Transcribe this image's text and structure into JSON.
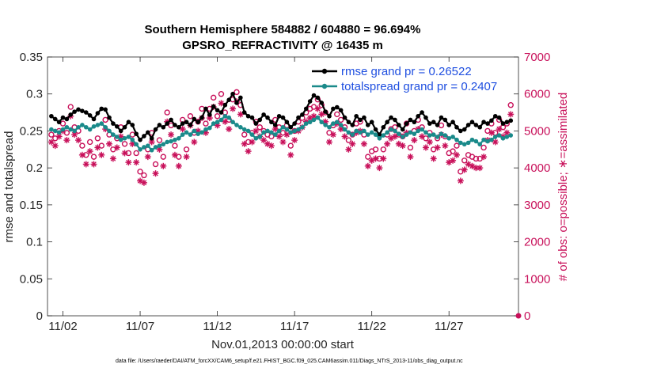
{
  "chart_data": {
    "type": "line",
    "title": "Southern Hemisphere 584882 / 604880 = 96.694%",
    "subtitle": "GPSRO_REFRACTIVITY @ 16435 m",
    "xlabel": "Nov.01,2013 00:00:00 start",
    "ylabel": "rmse and totalspread",
    "y2label": "# of obs: o=possible; ∗=assimilated",
    "footnote": "data file: /Users/raeder/DAI/ATM_forcXX/CAM6_setup/f.e21.FHIST_BGC.f09_025.CAM6assim.011/Diags_NTrS_2013-11/obs_diag_output.nc",
    "xlim": [
      0,
      30.5
    ],
    "ylim": [
      0,
      0.35
    ],
    "y2lim": [
      0,
      7000
    ],
    "x_ticks": [
      {
        "value": 1,
        "label": "11/02"
      },
      {
        "value": 6,
        "label": "11/07"
      },
      {
        "value": 11,
        "label": "11/12"
      },
      {
        "value": 16,
        "label": "11/17"
      },
      {
        "value": 21,
        "label": "11/22"
      },
      {
        "value": 26,
        "label": "11/27"
      }
    ],
    "y_ticks": [
      "0",
      "0.05",
      "0.1",
      "0.15",
      "0.2",
      "0.25",
      "0.3",
      "0.35"
    ],
    "y_tick_values": [
      0,
      0.05,
      0.1,
      0.15,
      0.2,
      0.25,
      0.3,
      0.35
    ],
    "y2_ticks": [
      "0",
      "1000",
      "2000",
      "3000",
      "4000",
      "5000",
      "6000",
      "7000"
    ],
    "y2_tick_values": [
      0,
      1000,
      2000,
      3000,
      4000,
      5000,
      6000,
      7000
    ],
    "legend": [
      {
        "label": "rmse grand pr = 0.26522",
        "color": "#000000"
      },
      {
        "label": "totalspread grand pr = 0.2407",
        "color": "#1a8a8a"
      }
    ],
    "colors": {
      "rmse": "#000000",
      "spread": "#1a8a8a",
      "obs": "#c8105a"
    },
    "x_start": 0.25,
    "x_step": 0.25,
    "series": [
      {
        "name": "rmse",
        "values": [
          0.27,
          0.266,
          0.262,
          0.268,
          0.266,
          0.272,
          0.276,
          0.279,
          0.277,
          0.275,
          0.271,
          0.266,
          0.274,
          0.28,
          0.279,
          0.268,
          0.26,
          0.256,
          0.25,
          0.255,
          0.262,
          0.258,
          0.246,
          0.238,
          0.243,
          0.248,
          0.24,
          0.252,
          0.258,
          0.255,
          0.26,
          0.265,
          0.258,
          0.255,
          0.26,
          0.262,
          0.258,
          0.266,
          0.262,
          0.268,
          0.28,
          0.272,
          0.283,
          0.278,
          0.275,
          0.285,
          0.292,
          0.3,
          0.288,
          0.295,
          0.275,
          0.27,
          0.268,
          0.26,
          0.265,
          0.272,
          0.268,
          0.262,
          0.258,
          0.27,
          0.268,
          0.262,
          0.255,
          0.26,
          0.268,
          0.272,
          0.28,
          0.29,
          0.298,
          0.295,
          0.288,
          0.276,
          0.27,
          0.28,
          0.282,
          0.278,
          0.268,
          0.262,
          0.258,
          0.27,
          0.265,
          0.268,
          0.258,
          0.262,
          0.252,
          0.245,
          0.255,
          0.262,
          0.268,
          0.265,
          0.258,
          0.252,
          0.26,
          0.265,
          0.262,
          0.27,
          0.275,
          0.268,
          0.26,
          0.262,
          0.258,
          0.268,
          0.265,
          0.258,
          0.262,
          0.255,
          0.25,
          0.252,
          0.258,
          0.262,
          0.258,
          0.255,
          0.262,
          0.26,
          0.264,
          0.27,
          0.268,
          0.26,
          0.262,
          0.264
        ],
        "color": "#000000"
      },
      {
        "name": "totalspread",
        "values": [
          0.252,
          0.25,
          0.248,
          0.252,
          0.255,
          0.252,
          0.25,
          0.255,
          0.258,
          0.255,
          0.252,
          0.256,
          0.258,
          0.26,
          0.255,
          0.25,
          0.245,
          0.242,
          0.238,
          0.24,
          0.242,
          0.238,
          0.232,
          0.225,
          0.228,
          0.23,
          0.224,
          0.228,
          0.23,
          0.232,
          0.235,
          0.236,
          0.238,
          0.24,
          0.245,
          0.248,
          0.245,
          0.25,
          0.246,
          0.248,
          0.252,
          0.254,
          0.26,
          0.262,
          0.265,
          0.27,
          0.268,
          0.262,
          0.258,
          0.255,
          0.252,
          0.25,
          0.245,
          0.24,
          0.242,
          0.248,
          0.25,
          0.248,
          0.245,
          0.25,
          0.255,
          0.252,
          0.248,
          0.25,
          0.252,
          0.255,
          0.26,
          0.262,
          0.265,
          0.268,
          0.262,
          0.258,
          0.255,
          0.26,
          0.262,
          0.258,
          0.252,
          0.248,
          0.245,
          0.25,
          0.248,
          0.25,
          0.245,
          0.248,
          0.245,
          0.24,
          0.244,
          0.248,
          0.252,
          0.25,
          0.246,
          0.242,
          0.245,
          0.248,
          0.246,
          0.25,
          0.252,
          0.248,
          0.244,
          0.245,
          0.242,
          0.246,
          0.244,
          0.24,
          0.242,
          0.238,
          0.234,
          0.232,
          0.234,
          0.238,
          0.236,
          0.232,
          0.238,
          0.236,
          0.238,
          0.242,
          0.244,
          0.24,
          0.242,
          0.244
        ],
        "color": "#1a8a8a"
      },
      {
        "name": "possible_obs",
        "axis": "right",
        "marker": "o",
        "values": [
          4900,
          4800,
          5000,
          5200,
          4950,
          5650,
          5100,
          5000,
          4600,
          4350,
          4700,
          4300,
          4800,
          4600,
          5300,
          4900,
          4500,
          4800,
          5100,
          4650,
          4400,
          4900,
          4400,
          3900,
          3800,
          4500,
          4950,
          4100,
          4750,
          4300,
          5500,
          5150,
          4600,
          4300,
          5300,
          4500,
          5400,
          4950,
          5250,
          5600,
          5200,
          5600,
          5900,
          5400,
          6000,
          5500,
          5300,
          5850,
          6050,
          5700,
          4900,
          4700,
          4950,
          5250,
          5100,
          5000,
          4900,
          4850,
          5300,
          5100,
          4950,
          5150,
          4600,
          5000,
          5250,
          5350,
          5500,
          5600,
          5650,
          5850,
          5700,
          5500,
          4950,
          5150,
          5450,
          5300,
          5100,
          4750,
          4900,
          5200,
          5250,
          4900,
          4300,
          4450,
          4500,
          4250,
          4500,
          4900,
          5050,
          5100,
          4900,
          4850,
          5200,
          4550,
          5000,
          5300,
          5100,
          4800,
          4950,
          4500,
          4800,
          5150,
          4850,
          4400,
          4450,
          4600,
          3900,
          4200,
          4350,
          4300,
          4250,
          4250,
          4550,
          5000,
          5200,
          4950,
          5300,
          5100,
          5200,
          5700
        ]
      },
      {
        "name": "assimilated_obs",
        "axis": "right",
        "marker": "*",
        "values": [
          4700,
          4600,
          4850,
          5000,
          4750,
          5400,
          4900,
          4750,
          4350,
          4100,
          4450,
          4100,
          4550,
          4350,
          5050,
          4650,
          4250,
          4550,
          4850,
          4400,
          4150,
          4650,
          4150,
          3650,
          3600,
          4300,
          4700,
          3850,
          4500,
          4050,
          5250,
          4900,
          4350,
          4050,
          5050,
          4300,
          5150,
          4700,
          5000,
          5350,
          4950,
          5350,
          5650,
          5150,
          5750,
          5250,
          5050,
          5600,
          5800,
          5450,
          4650,
          4450,
          4700,
          5000,
          4850,
          4750,
          4650,
          4600,
          5050,
          4850,
          4700,
          4900,
          4350,
          4750,
          5000,
          5100,
          5250,
          5350,
          5400,
          5600,
          5450,
          5250,
          4700,
          4900,
          5200,
          5050,
          4850,
          4500,
          4650,
          4950,
          5000,
          4650,
          4050,
          4200,
          4250,
          4000,
          4250,
          4650,
          4800,
          4850,
          4650,
          4600,
          4950,
          4300,
          4750,
          5050,
          4850,
          4550,
          4700,
          4250,
          4550,
          4900,
          4600,
          4150,
          4200,
          4350,
          3650,
          3950,
          4100,
          4050,
          4000,
          4000,
          4300,
          4750,
          4950,
          4700,
          5050,
          4850,
          4950,
          5450
        ]
      }
    ]
  }
}
